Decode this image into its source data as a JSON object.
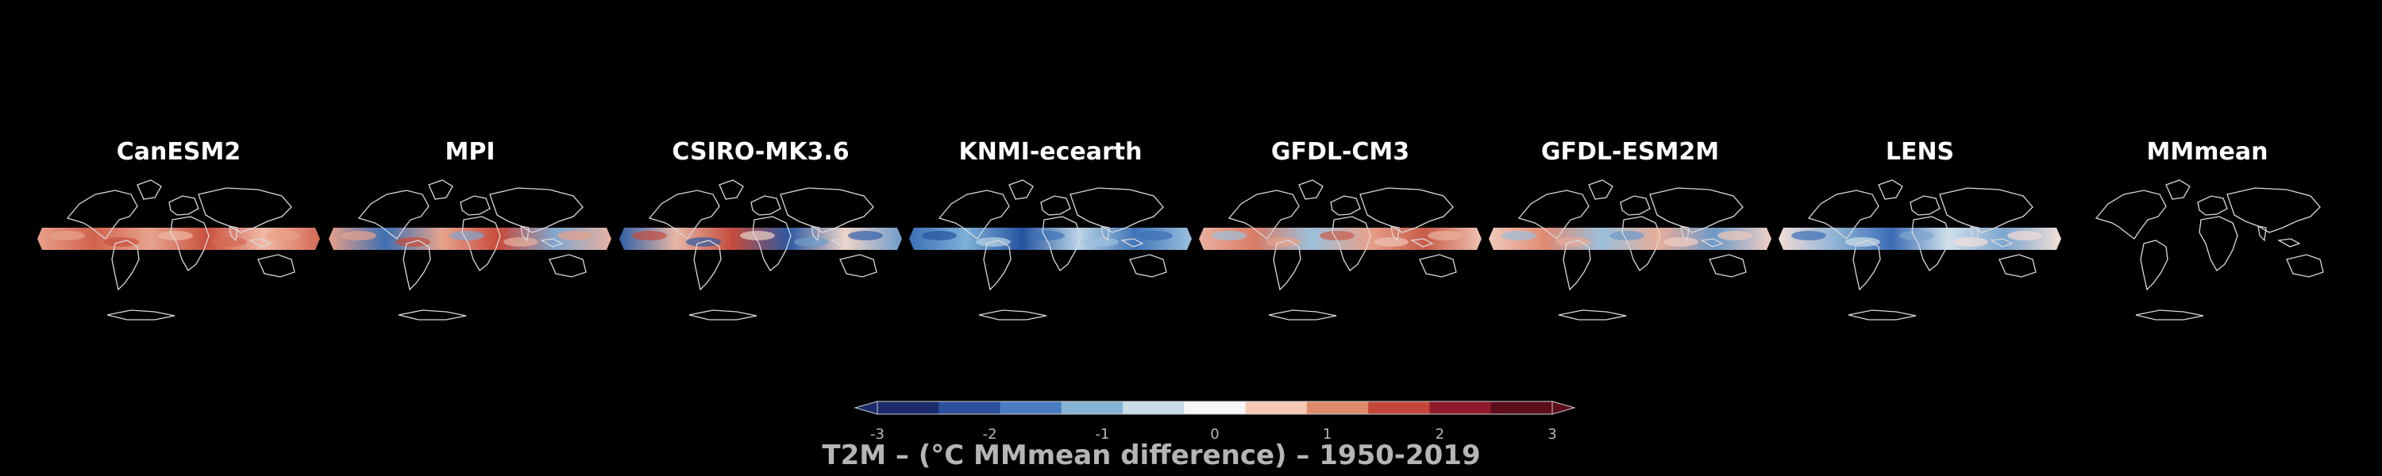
{
  "panels": [
    {
      "title": "CanESM2",
      "anomaly_pattern": "warm-dominant"
    },
    {
      "title": "MPI",
      "anomaly_pattern": "warm-with-cool-south-america"
    },
    {
      "title": "CSIRO-MK3.6",
      "anomaly_pattern": "mixed-strong-cool-pacific"
    },
    {
      "title": "KNMI-ecearth",
      "anomaly_pattern": "cool-dominant"
    },
    {
      "title": "GFDL-CM3",
      "anomaly_pattern": "warm-with-cool-patches"
    },
    {
      "title": "GFDL-ESM2M",
      "anomaly_pattern": "mixed-warm-cool"
    },
    {
      "title": "LENS",
      "anomaly_pattern": "cool-tropics-light"
    },
    {
      "title": "MMmean",
      "anomaly_pattern": "none"
    }
  ],
  "colorbar": {
    "label": "T2M – (°C MMmean difference) – 1950-2019",
    "ticks": [
      "-3",
      "-2",
      "-1",
      "0",
      "1",
      "2",
      "3"
    ],
    "range": [
      -3,
      3
    ],
    "colors": [
      "#1b2a6b",
      "#2c4f9e",
      "#4a7cc0",
      "#86b3d6",
      "#c9dde9",
      "#f7f7f7",
      "#f4c9b3",
      "#e08c6a",
      "#c2473a",
      "#8e1a2a",
      "#5b0d1c"
    ],
    "extend": "both"
  },
  "colors": {
    "background": "#000000",
    "title_text": "#ffffff",
    "coastline": "#d9d9d9",
    "label_text": "#b5b5b5"
  }
}
